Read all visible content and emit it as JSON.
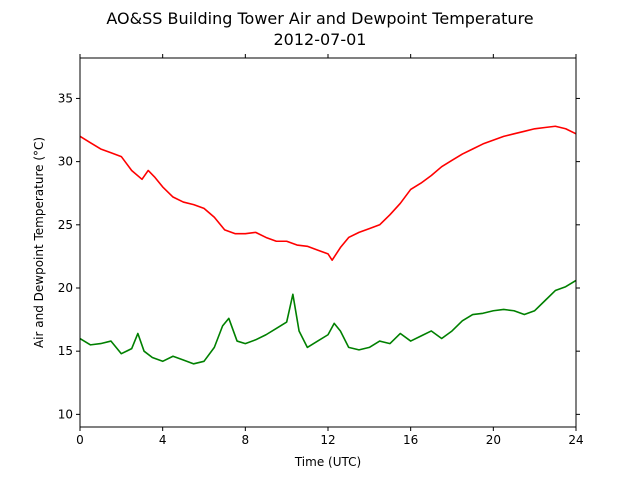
{
  "chart_data": {
    "type": "line",
    "title": "AO&SS Building Tower Air and Dewpoint Temperature",
    "subtitle": "2012-07-01",
    "xlabel": "Time (UTC)",
    "ylabel": "Air and Dewpoint Temperature (°C)",
    "xlim": [
      0,
      24
    ],
    "ylim": [
      9,
      38.2
    ],
    "xticks": [
      0,
      4,
      8,
      12,
      16,
      20,
      24
    ],
    "yticks": [
      10,
      15,
      20,
      25,
      30,
      35
    ],
    "grid": false,
    "series": [
      {
        "color": "#ff0000",
        "x": [
          0,
          0.5,
          1,
          1.5,
          2,
          2.5,
          3,
          3.3,
          3.6,
          4,
          4.5,
          5,
          5.5,
          6,
          6.5,
          7,
          7.5,
          8,
          8.5,
          9,
          9.5,
          10,
          10.5,
          11,
          11.5,
          12,
          12.2,
          12.6,
          13,
          13.5,
          14,
          14.5,
          15,
          15.5,
          16,
          16.5,
          17,
          17.5,
          18,
          18.5,
          19,
          19.5,
          20,
          20.5,
          21,
          21.5,
          22,
          22.5,
          23,
          23.5,
          24
        ],
        "y": [
          32.0,
          31.5,
          31.0,
          30.7,
          30.4,
          29.3,
          28.6,
          29.3,
          28.8,
          28.0,
          27.2,
          26.8,
          26.6,
          26.3,
          25.6,
          24.6,
          24.3,
          24.3,
          24.4,
          24.0,
          23.7,
          23.7,
          23.4,
          23.3,
          23.0,
          22.7,
          22.2,
          23.2,
          24.0,
          24.4,
          24.7,
          25.0,
          25.8,
          26.7,
          27.8,
          28.3,
          28.9,
          29.6,
          30.1,
          30.6,
          31.0,
          31.4,
          31.7,
          32.0,
          32.2,
          32.4,
          32.6,
          32.7,
          32.8,
          32.6,
          32.2
        ]
      },
      {
        "color": "#008000",
        "x": [
          0,
          0.5,
          1,
          1.5,
          2,
          2.5,
          2.8,
          3.1,
          3.5,
          4,
          4.5,
          5,
          5.5,
          6,
          6.5,
          6.9,
          7.2,
          7.6,
          8,
          8.5,
          9,
          9.5,
          10,
          10.3,
          10.6,
          11,
          11.5,
          12,
          12.3,
          12.6,
          13,
          13.5,
          14,
          14.5,
          15,
          15.5,
          16,
          16.5,
          17,
          17.5,
          18,
          18.5,
          19,
          19.5,
          20,
          20.5,
          21,
          21.5,
          22,
          22.5,
          23,
          23.5,
          24
        ],
        "y": [
          16.0,
          15.5,
          15.6,
          15.8,
          14.8,
          15.2,
          16.4,
          15.0,
          14.5,
          14.2,
          14.6,
          14.3,
          14.0,
          14.2,
          15.3,
          17.0,
          17.6,
          15.8,
          15.6,
          15.9,
          16.3,
          16.8,
          17.3,
          19.5,
          16.6,
          15.3,
          15.8,
          16.3,
          17.2,
          16.6,
          15.3,
          15.1,
          15.3,
          15.8,
          15.6,
          16.4,
          15.8,
          16.2,
          16.6,
          16.0,
          16.6,
          17.4,
          17.9,
          18.0,
          18.2,
          18.3,
          18.2,
          17.9,
          18.2,
          19.0,
          19.8,
          20.1,
          20.6
        ]
      }
    ]
  }
}
